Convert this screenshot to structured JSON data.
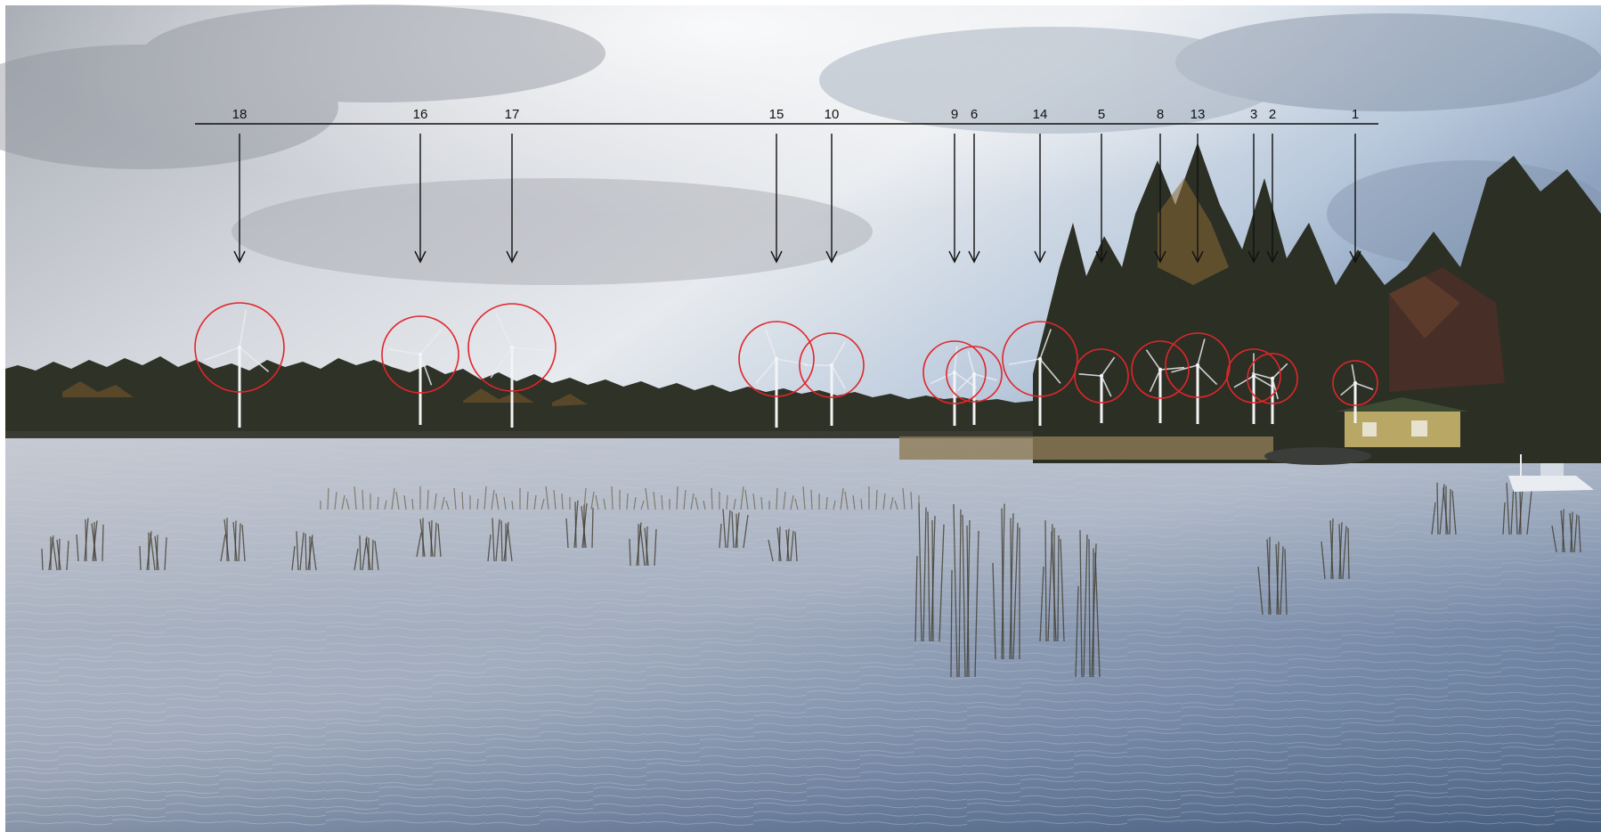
{
  "turbines": [
    {
      "id": "18"
    },
    {
      "id": "16"
    },
    {
      "id": "17"
    },
    {
      "id": "15"
    },
    {
      "id": "10"
    },
    {
      "id": "9"
    },
    {
      "id": "6"
    },
    {
      "id": "14"
    },
    {
      "id": "5"
    },
    {
      "id": "8"
    },
    {
      "id": "13"
    },
    {
      "id": "3"
    },
    {
      "id": "2"
    },
    {
      "id": "1"
    }
  ],
  "colors": {
    "marker_circle": "#e0262b",
    "arrow_line": "#111111",
    "turbine": "#f4f4f6",
    "water": "#9aa7bb",
    "sky": "#c9d0da",
    "treeline": "#2f3226"
  }
}
